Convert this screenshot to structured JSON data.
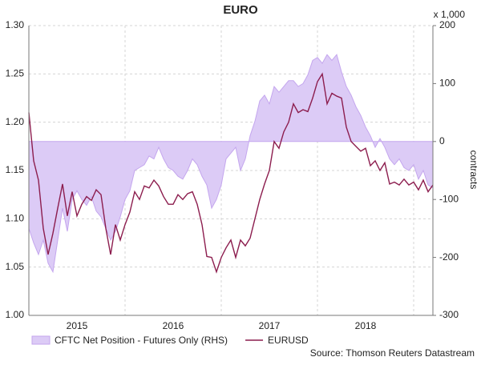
{
  "chart_data": {
    "type": "dual-axis-area-line",
    "title": "EURO",
    "y2label": "contracts",
    "y2unit": "x 1,000",
    "source": "Source: Thomson Reuters Datastream",
    "x": [
      2015,
      2015.05,
      2015.1,
      2015.15,
      2015.2,
      2015.25,
      2015.3,
      2015.35,
      2015.4,
      2015.45,
      2015.5,
      2015.55,
      2015.6,
      2015.65,
      2015.7,
      2015.75,
      2015.8,
      2015.85,
      2015.9,
      2015.95,
      2016,
      2016.05,
      2016.1,
      2016.15,
      2016.2,
      2016.25,
      2016.3,
      2016.35,
      2016.4,
      2016.45,
      2016.5,
      2016.55,
      2016.6,
      2016.65,
      2016.7,
      2016.75,
      2016.8,
      2016.85,
      2016.9,
      2016.95,
      2017,
      2017.05,
      2017.1,
      2017.15,
      2017.2,
      2017.25,
      2017.3,
      2017.35,
      2017.4,
      2017.45,
      2017.5,
      2017.55,
      2017.6,
      2017.65,
      2017.7,
      2017.75,
      2017.8,
      2017.85,
      2017.9,
      2017.95,
      2018,
      2018.05,
      2018.1,
      2018.15,
      2018.2,
      2018.25,
      2018.3,
      2018.35,
      2018.4,
      2018.45,
      2018.5,
      2018.55,
      2018.6,
      2018.65,
      2018.7,
      2018.75,
      2018.8,
      2018.85,
      2018.9,
      2018.95,
      2019,
      2019.05,
      2019.1,
      2019.15,
      2019.2
    ],
    "xlim": [
      2015,
      2019.2
    ],
    "xticks": [
      {
        "value": 2015.5,
        "label": "2015"
      },
      {
        "value": 2016.5,
        "label": "2016"
      },
      {
        "value": 2017.5,
        "label": "2017"
      },
      {
        "value": 2018.5,
        "label": "2018"
      }
    ],
    "xgrid": [
      2016,
      2017,
      2018,
      2019
    ],
    "ylim": [
      1.0,
      1.3
    ],
    "yticks": [
      {
        "value": 1.0,
        "label": "1.00"
      },
      {
        "value": 1.05,
        "label": "1.05"
      },
      {
        "value": 1.1,
        "label": "1.10"
      },
      {
        "value": 1.15,
        "label": "1.15"
      },
      {
        "value": 1.2,
        "label": "1.20"
      },
      {
        "value": 1.25,
        "label": "1.25"
      },
      {
        "value": 1.3,
        "label": "1.30"
      }
    ],
    "y2lim": [
      -300,
      200
    ],
    "y2ticks": [
      -300,
      -200,
      -100,
      0,
      100,
      200
    ],
    "grid": true,
    "series": [
      {
        "name": "CFTC Net Position - Futures Only (RHS)",
        "kind": "area",
        "axis": "y2",
        "color": "#dccbf6",
        "edge": "#c4a6ee",
        "values": [
          -150,
          -175,
          -195,
          -170,
          -210,
          -225,
          -170,
          -115,
          -155,
          -100,
          -85,
          -100,
          -110,
          -95,
          -120,
          -130,
          -150,
          -170,
          -155,
          -130,
          -100,
          -85,
          -50,
          -45,
          -40,
          -25,
          -30,
          -10,
          -30,
          -45,
          -50,
          -60,
          -65,
          -50,
          -30,
          -40,
          -60,
          -75,
          -115,
          -100,
          -75,
          -30,
          -20,
          -10,
          -50,
          -30,
          10,
          35,
          70,
          80,
          65,
          95,
          85,
          95,
          105,
          105,
          95,
          100,
          115,
          140,
          145,
          135,
          150,
          140,
          150,
          120,
          95,
          80,
          60,
          45,
          25,
          10,
          -10,
          5,
          -10,
          -30,
          -40,
          -30,
          -45,
          -50,
          -40,
          -65,
          -50,
          -75,
          -80
        ]
      },
      {
        "name": "EURUSD",
        "kind": "line",
        "axis": "y",
        "color": "#8c1d4e",
        "values": [
          1.21,
          1.16,
          1.14,
          1.09,
          1.063,
          1.085,
          1.111,
          1.136,
          1.103,
          1.128,
          1.103,
          1.115,
          1.123,
          1.119,
          1.13,
          1.125,
          1.09,
          1.063,
          1.094,
          1.078,
          1.094,
          1.107,
          1.128,
          1.12,
          1.134,
          1.132,
          1.14,
          1.134,
          1.123,
          1.115,
          1.115,
          1.125,
          1.12,
          1.126,
          1.128,
          1.115,
          1.094,
          1.061,
          1.06,
          1.045,
          1.06,
          1.07,
          1.078,
          1.06,
          1.078,
          1.072,
          1.08,
          1.1,
          1.12,
          1.136,
          1.15,
          1.18,
          1.173,
          1.19,
          1.2,
          1.219,
          1.21,
          1.213,
          1.211,
          1.225,
          1.242,
          1.25,
          1.219,
          1.23,
          1.227,
          1.225,
          1.195,
          1.18,
          1.175,
          1.17,
          1.173,
          1.155,
          1.16,
          1.15,
          1.158,
          1.136,
          1.138,
          1.135,
          1.141,
          1.135,
          1.138,
          1.13,
          1.14,
          1.128,
          1.135
        ]
      }
    ]
  }
}
